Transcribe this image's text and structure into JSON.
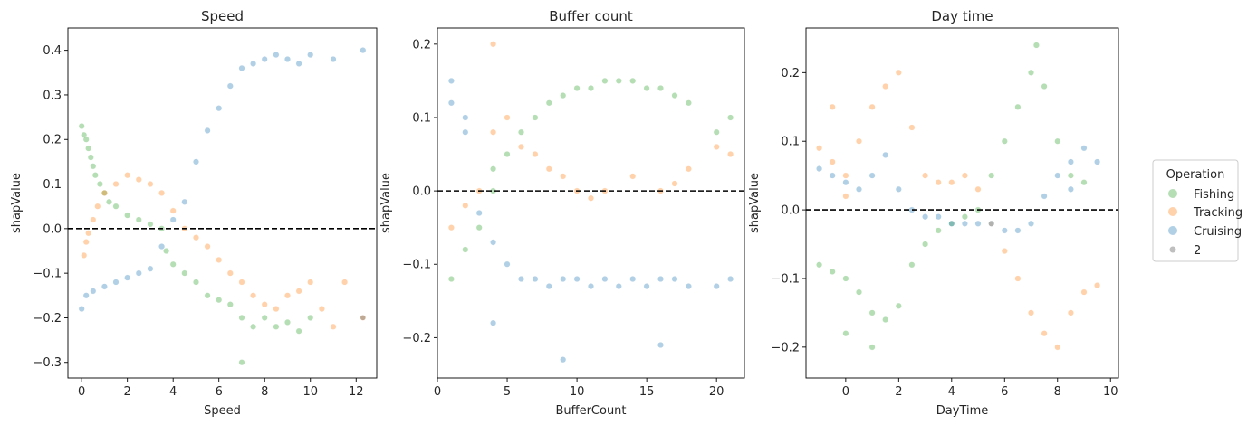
{
  "legend": {
    "title": "Operation",
    "entries": [
      {
        "label": "Fishing",
        "color": "#2ca02c",
        "alpha": 0.35
      },
      {
        "label": "Tracking",
        "color": "#ff7f0e",
        "alpha": 0.35
      },
      {
        "label": "Cruising",
        "color": "#1f77b4",
        "alpha": 0.35
      },
      {
        "label": "2",
        "color": "#7f7f7f",
        "alpha": 0.5
      }
    ]
  },
  "chart_data": [
    {
      "type": "scatter",
      "title": "Speed",
      "xlabel": "Speed",
      "ylabel": "shapValue",
      "xlim": [
        -0.6,
        12.9
      ],
      "ylim": [
        -0.335,
        0.45
      ],
      "xticks": [
        0,
        2,
        4,
        6,
        8,
        10,
        12
      ],
      "yticks": [
        -0.3,
        -0.2,
        -0.1,
        0.0,
        0.1,
        0.2,
        0.3,
        0.4
      ],
      "ytick_labels": [
        "−0.3",
        "−0.2",
        "−0.1",
        "0.0",
        "0.1",
        "0.2",
        "0.3",
        "0.4"
      ],
      "reference_line_y": 0,
      "series": [
        {
          "name": "Fishing",
          "points": [
            [
              0.0,
              0.23
            ],
            [
              0.1,
              0.21
            ],
            [
              0.2,
              0.2
            ],
            [
              0.3,
              0.18
            ],
            [
              0.4,
              0.16
            ],
            [
              0.5,
              0.14
            ],
            [
              0.6,
              0.12
            ],
            [
              0.8,
              0.1
            ],
            [
              1.0,
              0.08
            ],
            [
              1.2,
              0.06
            ],
            [
              1.5,
              0.05
            ],
            [
              2.0,
              0.03
            ],
            [
              2.5,
              0.02
            ],
            [
              3.0,
              0.01
            ],
            [
              3.5,
              0.0
            ],
            [
              3.7,
              -0.05
            ],
            [
              4.0,
              -0.08
            ],
            [
              4.5,
              -0.1
            ],
            [
              5.0,
              -0.12
            ],
            [
              5.5,
              -0.15
            ],
            [
              6.0,
              -0.16
            ],
            [
              6.5,
              -0.17
            ],
            [
              7.0,
              -0.2
            ],
            [
              7.5,
              -0.22
            ],
            [
              8.0,
              -0.2
            ],
            [
              8.5,
              -0.22
            ],
            [
              9.0,
              -0.21
            ],
            [
              9.5,
              -0.23
            ],
            [
              10.0,
              -0.2
            ],
            [
              7.0,
              -0.3
            ]
          ]
        },
        {
          "name": "Tracking",
          "points": [
            [
              0.1,
              -0.06
            ],
            [
              0.2,
              -0.03
            ],
            [
              0.3,
              -0.01
            ],
            [
              0.5,
              0.02
            ],
            [
              0.7,
              0.05
            ],
            [
              1.0,
              0.08
            ],
            [
              1.5,
              0.1
            ],
            [
              2.0,
              0.12
            ],
            [
              2.5,
              0.11
            ],
            [
              3.0,
              0.1
            ],
            [
              3.5,
              0.08
            ],
            [
              4.0,
              0.04
            ],
            [
              4.5,
              0.0
            ],
            [
              5.0,
              -0.02
            ],
            [
              5.5,
              -0.04
            ],
            [
              6.0,
              -0.07
            ],
            [
              6.5,
              -0.1
            ],
            [
              7.0,
              -0.12
            ],
            [
              7.5,
              -0.15
            ],
            [
              8.0,
              -0.17
            ],
            [
              8.5,
              -0.18
            ],
            [
              9.0,
              -0.15
            ],
            [
              9.5,
              -0.14
            ],
            [
              10.0,
              -0.12
            ],
            [
              10.5,
              -0.18
            ],
            [
              11.0,
              -0.22
            ],
            [
              11.5,
              -0.12
            ],
            [
              12.3,
              -0.2
            ]
          ]
        },
        {
          "name": "Cruising",
          "points": [
            [
              0.0,
              -0.18
            ],
            [
              0.2,
              -0.15
            ],
            [
              0.5,
              -0.14
            ],
            [
              1.0,
              -0.13
            ],
            [
              1.5,
              -0.12
            ],
            [
              2.0,
              -0.11
            ],
            [
              2.5,
              -0.1
            ],
            [
              3.0,
              -0.09
            ],
            [
              3.5,
              -0.04
            ],
            [
              4.0,
              0.02
            ],
            [
              4.5,
              0.06
            ],
            [
              5.0,
              0.15
            ],
            [
              5.5,
              0.22
            ],
            [
              6.0,
              0.27
            ],
            [
              6.5,
              0.32
            ],
            [
              7.0,
              0.36
            ],
            [
              7.5,
              0.37
            ],
            [
              8.0,
              0.38
            ],
            [
              8.5,
              0.39
            ],
            [
              9.0,
              0.38
            ],
            [
              9.5,
              0.37
            ],
            [
              10.0,
              0.39
            ],
            [
              11.0,
              0.38
            ],
            [
              12.3,
              0.4
            ]
          ]
        },
        {
          "name": "2",
          "points": [
            [
              12.3,
              -0.2
            ]
          ]
        }
      ]
    },
    {
      "type": "scatter",
      "title": "Buffer count",
      "xlabel": "BufferCount",
      "ylabel": "shapValue",
      "xlim": [
        0,
        22
      ],
      "ylim": [
        -0.255,
        0.222
      ],
      "xticks": [
        0,
        5,
        10,
        15,
        20
      ],
      "yticks": [
        -0.2,
        -0.1,
        0.0,
        0.1,
        0.2
      ],
      "ytick_labels": [
        "−0.2",
        "−0.1",
        "0.0",
        "0.1",
        "0.2"
      ],
      "reference_line_y": 0,
      "series": [
        {
          "name": "Fishing",
          "points": [
            [
              1,
              -0.12
            ],
            [
              2,
              -0.08
            ],
            [
              3,
              -0.05
            ],
            [
              4,
              0.0
            ],
            [
              4,
              0.03
            ],
            [
              5,
              0.05
            ],
            [
              6,
              0.08
            ],
            [
              7,
              0.1
            ],
            [
              8,
              0.12
            ],
            [
              9,
              0.13
            ],
            [
              10,
              0.14
            ],
            [
              11,
              0.14
            ],
            [
              12,
              0.15
            ],
            [
              13,
              0.15
            ],
            [
              14,
              0.15
            ],
            [
              15,
              0.14
            ],
            [
              16,
              0.14
            ],
            [
              17,
              0.13
            ],
            [
              18,
              0.12
            ],
            [
              20,
              0.08
            ],
            [
              21,
              0.1
            ]
          ]
        },
        {
          "name": "Tracking",
          "points": [
            [
              1,
              -0.05
            ],
            [
              2,
              -0.02
            ],
            [
              3,
              0.0
            ],
            [
              4,
              0.08
            ],
            [
              4,
              0.2
            ],
            [
              5,
              0.1
            ],
            [
              6,
              0.06
            ],
            [
              7,
              0.05
            ],
            [
              8,
              0.03
            ],
            [
              9,
              0.02
            ],
            [
              10,
              0.0
            ],
            [
              11,
              -0.01
            ],
            [
              12,
              0.0
            ],
            [
              14,
              0.02
            ],
            [
              16,
              0.0
            ],
            [
              17,
              0.01
            ],
            [
              18,
              0.03
            ],
            [
              20,
              0.06
            ],
            [
              21,
              0.05
            ]
          ]
        },
        {
          "name": "Cruising",
          "points": [
            [
              1,
              0.15
            ],
            [
              1,
              0.12
            ],
            [
              2,
              0.1
            ],
            [
              2,
              0.08
            ],
            [
              3,
              -0.03
            ],
            [
              4,
              -0.07
            ],
            [
              4,
              -0.18
            ],
            [
              5,
              -0.1
            ],
            [
              6,
              -0.12
            ],
            [
              7,
              -0.12
            ],
            [
              8,
              -0.13
            ],
            [
              9,
              -0.12
            ],
            [
              9,
              -0.23
            ],
            [
              10,
              -0.12
            ],
            [
              11,
              -0.13
            ],
            [
              12,
              -0.12
            ],
            [
              13,
              -0.13
            ],
            [
              14,
              -0.12
            ],
            [
              15,
              -0.13
            ],
            [
              16,
              -0.12
            ],
            [
              16,
              -0.21
            ],
            [
              17,
              -0.12
            ],
            [
              18,
              -0.13
            ],
            [
              20,
              -0.13
            ],
            [
              21,
              -0.12
            ]
          ]
        }
      ]
    },
    {
      "type": "scatter",
      "title": "Day time",
      "xlabel": "DayTime",
      "ylabel": "shapValue",
      "xlim": [
        -1.5,
        10.3
      ],
      "ylim": [
        -0.245,
        0.265
      ],
      "xticks": [
        0,
        2,
        4,
        6,
        8,
        10
      ],
      "yticks": [
        -0.2,
        -0.1,
        0.0,
        0.1,
        0.2
      ],
      "ytick_labels": [
        "−0.2",
        "−0.1",
        "0.0",
        "0.1",
        "0.2"
      ],
      "reference_line_y": 0,
      "series": [
        {
          "name": "Fishing",
          "points": [
            [
              -1.0,
              -0.08
            ],
            [
              -0.5,
              -0.09
            ],
            [
              0.0,
              -0.1
            ],
            [
              0.5,
              -0.12
            ],
            [
              1.0,
              -0.15
            ],
            [
              1.5,
              -0.16
            ],
            [
              2.0,
              -0.14
            ],
            [
              2.5,
              -0.08
            ],
            [
              3.0,
              -0.05
            ],
            [
              3.5,
              -0.03
            ],
            [
              4.0,
              -0.02
            ],
            [
              4.5,
              -0.01
            ],
            [
              5.0,
              0.0
            ],
            [
              5.5,
              0.05
            ],
            [
              6.0,
              0.1
            ],
            [
              6.5,
              0.15
            ],
            [
              7.0,
              0.2
            ],
            [
              7.2,
              0.24
            ],
            [
              7.5,
              0.18
            ],
            [
              8.0,
              0.1
            ],
            [
              8.5,
              0.05
            ],
            [
              9.0,
              0.04
            ],
            [
              1.0,
              -0.2
            ],
            [
              0.0,
              -0.18
            ]
          ]
        },
        {
          "name": "Tracking",
          "points": [
            [
              -1.0,
              0.09
            ],
            [
              -0.5,
              0.07
            ],
            [
              0.0,
              0.05
            ],
            [
              0.5,
              0.1
            ],
            [
              1.0,
              0.15
            ],
            [
              1.5,
              0.18
            ],
            [
              2.0,
              0.2
            ],
            [
              2.5,
              0.12
            ],
            [
              3.0,
              0.05
            ],
            [
              3.5,
              0.04
            ],
            [
              4.0,
              0.04
            ],
            [
              4.5,
              0.05
            ],
            [
              5.0,
              0.03
            ],
            [
              5.5,
              -0.02
            ],
            [
              6.0,
              -0.06
            ],
            [
              6.5,
              -0.1
            ],
            [
              7.0,
              -0.15
            ],
            [
              7.5,
              -0.18
            ],
            [
              8.0,
              -0.2
            ],
            [
              8.5,
              -0.15
            ],
            [
              9.0,
              -0.12
            ],
            [
              9.5,
              -0.11
            ],
            [
              0.0,
              0.02
            ],
            [
              -0.5,
              0.15
            ]
          ]
        },
        {
          "name": "Cruising",
          "points": [
            [
              -1.0,
              0.06
            ],
            [
              -0.5,
              0.05
            ],
            [
              0.0,
              0.04
            ],
            [
              0.5,
              0.03
            ],
            [
              1.0,
              0.05
            ],
            [
              1.5,
              0.08
            ],
            [
              2.0,
              0.03
            ],
            [
              2.5,
              0.0
            ],
            [
              3.0,
              -0.01
            ],
            [
              3.5,
              -0.01
            ],
            [
              4.0,
              -0.02
            ],
            [
              4.5,
              -0.02
            ],
            [
              5.0,
              -0.02
            ],
            [
              5.5,
              -0.02
            ],
            [
              6.0,
              -0.03
            ],
            [
              6.5,
              -0.03
            ],
            [
              7.0,
              -0.02
            ],
            [
              7.5,
              0.02
            ],
            [
              8.0,
              0.05
            ],
            [
              8.5,
              0.07
            ],
            [
              9.0,
              0.09
            ],
            [
              9.5,
              0.07
            ],
            [
              8.5,
              0.03
            ]
          ]
        }
      ]
    }
  ]
}
